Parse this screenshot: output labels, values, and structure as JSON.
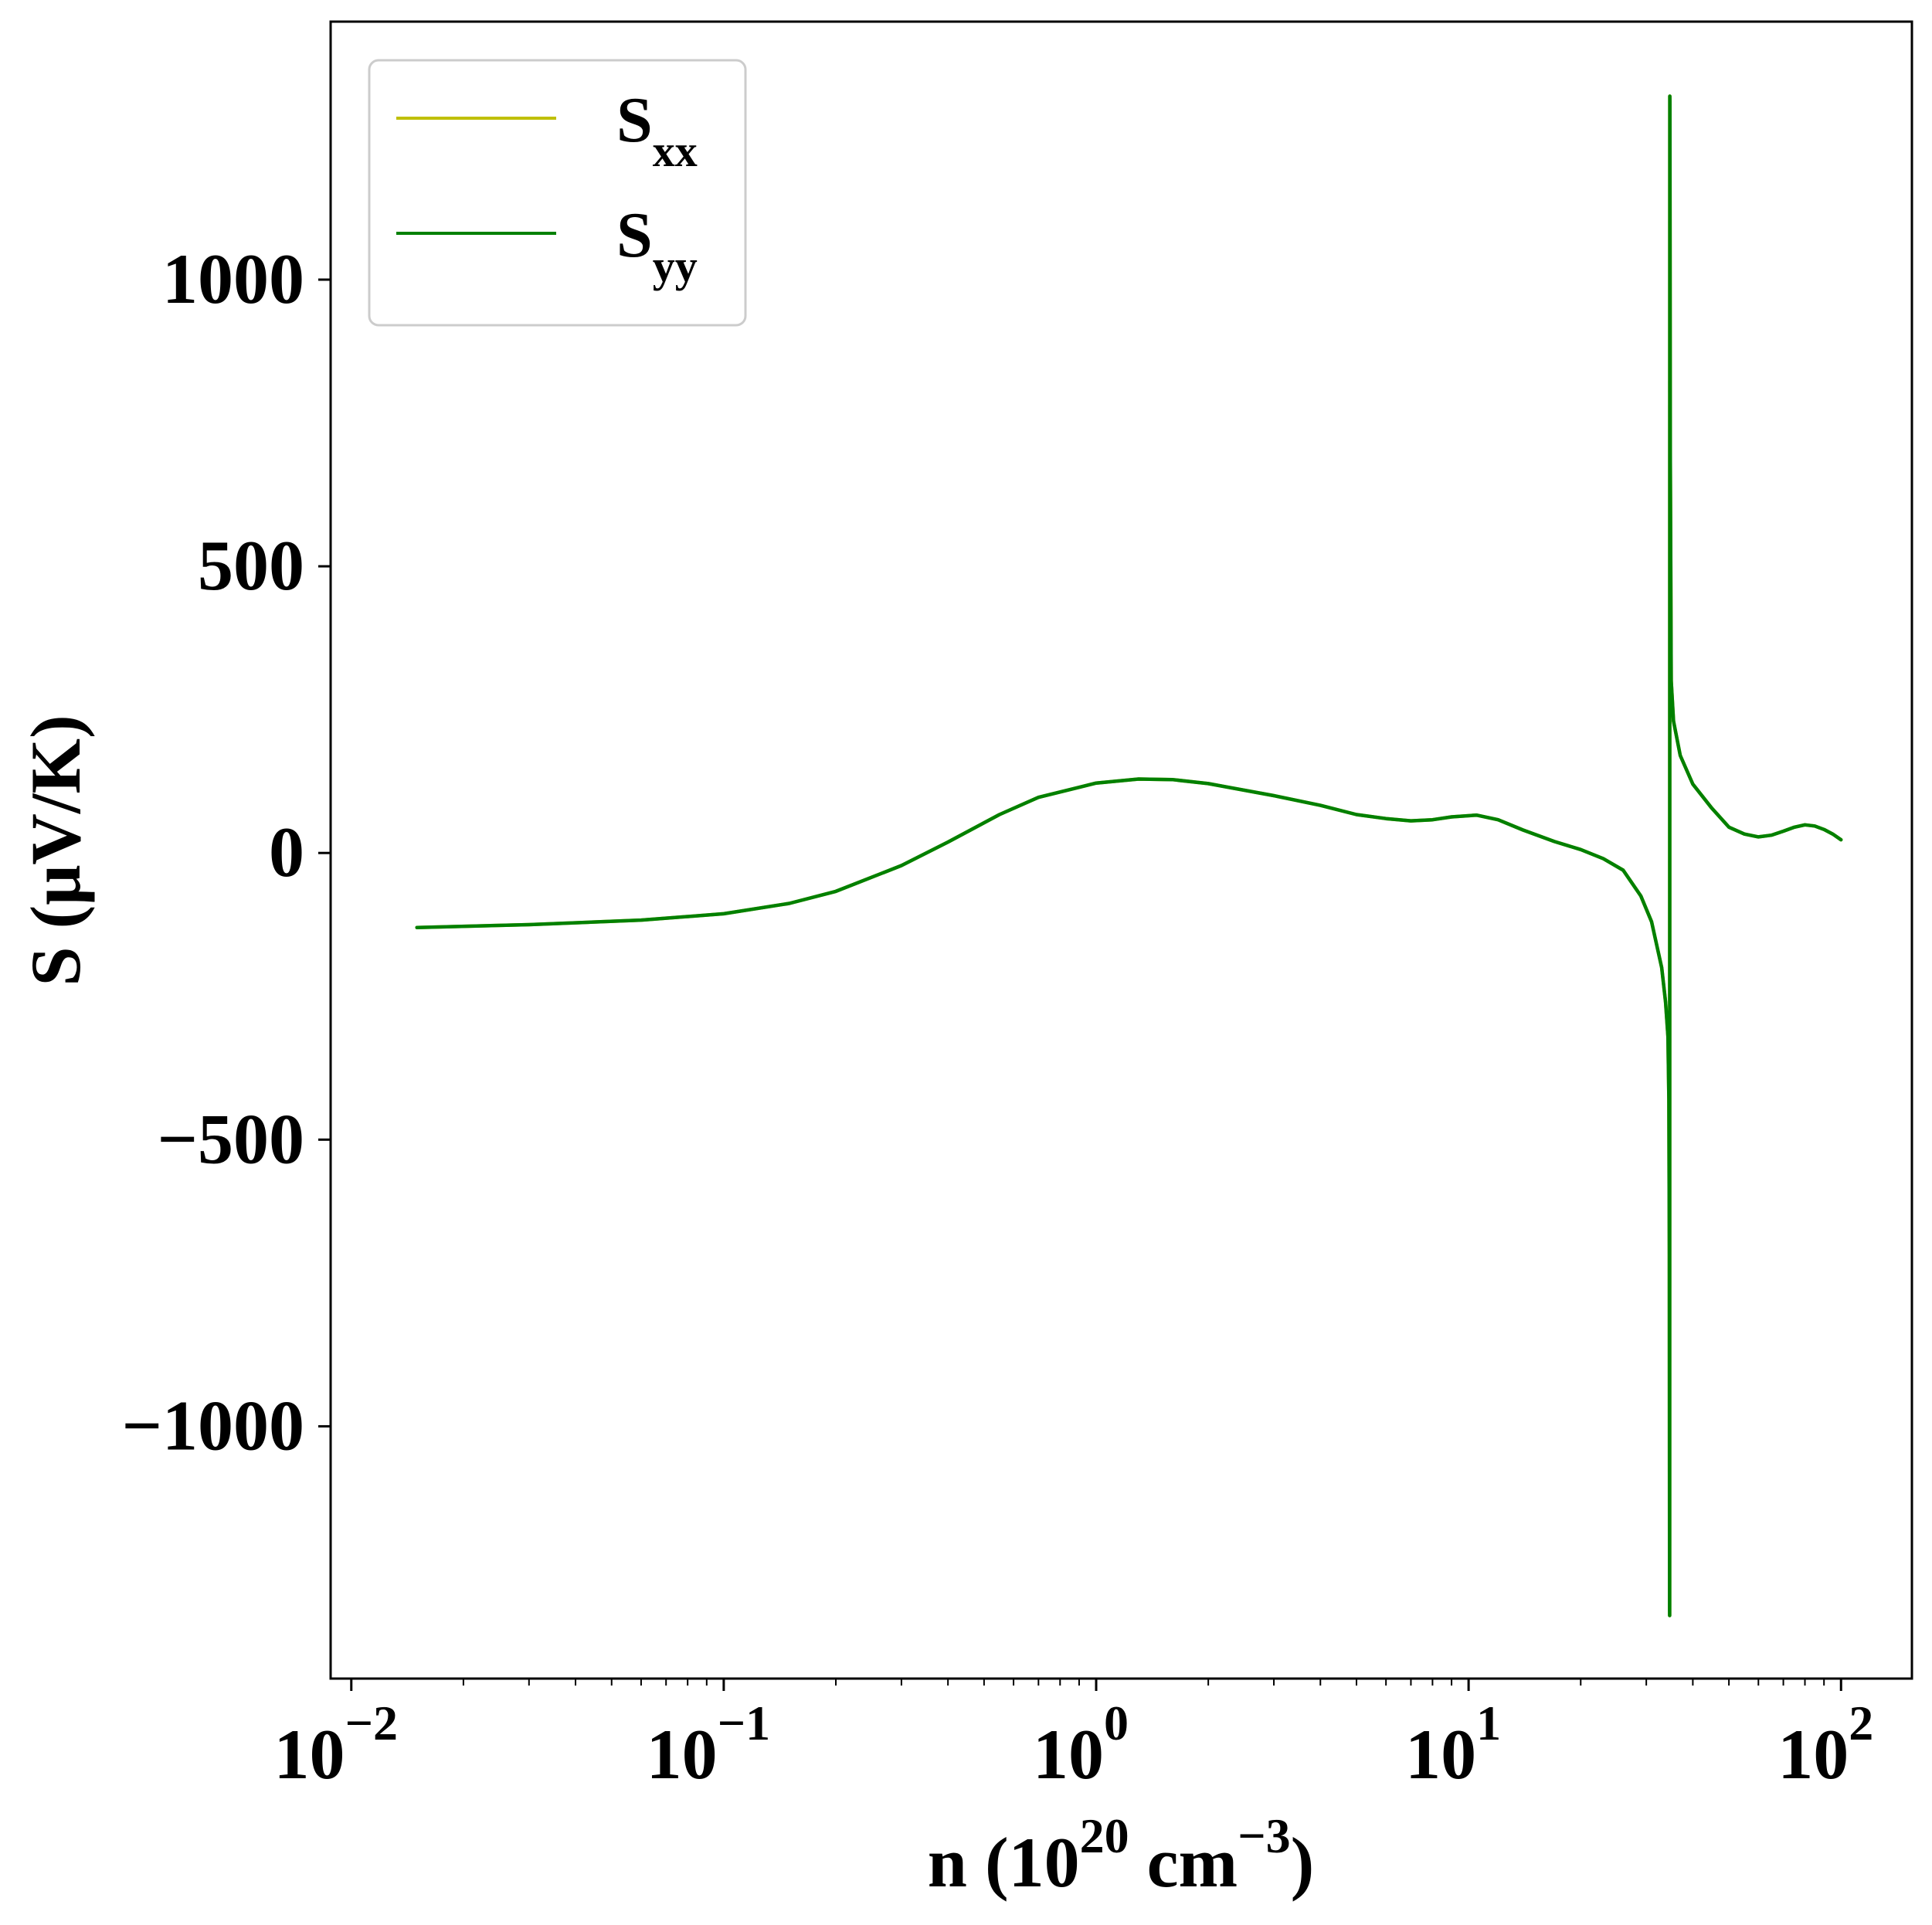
{
  "chart_data": {
    "type": "line",
    "title": "",
    "xlabel": {
      "prefix": "n (10",
      "sup1": "20",
      "middle": " cm",
      "sup2": "−3",
      "suffix": ")"
    },
    "ylabel": "S (μV/K)",
    "xscale": "log",
    "xlim": [
      0.0088,
      155
    ],
    "ylim": [
      -1440,
      1450
    ],
    "grid": false,
    "legend_position": "top-left",
    "x_ticks": [
      {
        "value": 0.01,
        "base": "10",
        "exp": "−2"
      },
      {
        "value": 0.1,
        "base": "10",
        "exp": "−1"
      },
      {
        "value": 1,
        "base": "10",
        "exp": "0"
      },
      {
        "value": 10,
        "base": "10",
        "exp": "1"
      },
      {
        "value": 100,
        "base": "10",
        "exp": "2"
      }
    ],
    "y_ticks": [
      {
        "value": 1000,
        "label": "1000"
      },
      {
        "value": 500,
        "label": "500"
      },
      {
        "value": 0,
        "label": "0"
      },
      {
        "value": -500,
        "label": "−500"
      },
      {
        "value": -1000,
        "label": "−1000"
      }
    ],
    "series": [
      {
        "name": "S",
        "subscript": "xx",
        "color": "#bfbf00",
        "points": [
          [
            0.015,
            -130
          ],
          [
            0.03,
            -125
          ],
          [
            0.06,
            -117
          ],
          [
            0.1,
            -106
          ],
          [
            0.15,
            -88
          ],
          [
            0.2,
            -67
          ],
          [
            0.3,
            -22
          ],
          [
            0.4,
            19
          ],
          [
            0.55,
            67
          ],
          [
            0.7,
            97
          ],
          [
            1.0,
            122
          ],
          [
            1.3,
            129
          ],
          [
            1.6,
            128
          ],
          [
            2.0,
            121
          ],
          [
            3.0,
            100
          ],
          [
            4.0,
            83
          ],
          [
            5.0,
            67
          ],
          [
            6.0,
            60
          ],
          [
            7.0,
            56
          ],
          [
            8.0,
            58
          ],
          [
            9.0,
            63
          ],
          [
            10.5,
            66
          ],
          [
            12.0,
            58
          ],
          [
            14.0,
            40
          ],
          [
            17.0,
            20
          ],
          [
            20.0,
            6
          ],
          [
            23.0,
            -10
          ],
          [
            26.0,
            -30
          ],
          [
            29.0,
            -75
          ],
          [
            31.0,
            -120
          ],
          [
            33.0,
            -200
          ],
          [
            33.8,
            -260
          ],
          [
            34.3,
            -320
          ],
          [
            34.5,
            -430
          ],
          [
            34.6,
            -700
          ],
          [
            34.65,
            -1320
          ],
          [
            34.67,
            -1330
          ],
          [
            34.69,
            1320
          ],
          [
            34.71,
            1310
          ],
          [
            34.8,
            700
          ],
          [
            35.0,
            300
          ],
          [
            35.5,
            230
          ],
          [
            37.0,
            170
          ],
          [
            40.0,
            120
          ],
          [
            45.0,
            78
          ],
          [
            50.0,
            45
          ],
          [
            55.0,
            33
          ],
          [
            60.0,
            28
          ],
          [
            65.0,
            31
          ],
          [
            70.0,
            38
          ],
          [
            75.0,
            45
          ],
          [
            80.0,
            49
          ],
          [
            85.0,
            47
          ],
          [
            90.0,
            41
          ],
          [
            95.0,
            33
          ],
          [
            100.0,
            23
          ]
        ]
      },
      {
        "name": "S",
        "subscript": "yy",
        "color": "#008000",
        "points": [
          [
            0.015,
            -130
          ],
          [
            0.03,
            -125
          ],
          [
            0.06,
            -117
          ],
          [
            0.1,
            -106
          ],
          [
            0.15,
            -88
          ],
          [
            0.2,
            -67
          ],
          [
            0.3,
            -22
          ],
          [
            0.4,
            19
          ],
          [
            0.55,
            67
          ],
          [
            0.7,
            97
          ],
          [
            1.0,
            122
          ],
          [
            1.3,
            129
          ],
          [
            1.6,
            128
          ],
          [
            2.0,
            121
          ],
          [
            3.0,
            100
          ],
          [
            4.0,
            83
          ],
          [
            5.0,
            67
          ],
          [
            6.0,
            60
          ],
          [
            7.0,
            56
          ],
          [
            8.0,
            58
          ],
          [
            9.0,
            63
          ],
          [
            10.5,
            66
          ],
          [
            12.0,
            58
          ],
          [
            14.0,
            40
          ],
          [
            17.0,
            20
          ],
          [
            20.0,
            6
          ],
          [
            23.0,
            -10
          ],
          [
            26.0,
            -30
          ],
          [
            29.0,
            -75
          ],
          [
            31.0,
            -120
          ],
          [
            33.0,
            -200
          ],
          [
            33.8,
            -260
          ],
          [
            34.3,
            -320
          ],
          [
            34.5,
            -430
          ],
          [
            34.6,
            -700
          ],
          [
            34.65,
            -1320
          ],
          [
            34.67,
            -1330
          ],
          [
            34.69,
            1320
          ],
          [
            34.71,
            1310
          ],
          [
            34.8,
            700
          ],
          [
            35.0,
            300
          ],
          [
            35.5,
            230
          ],
          [
            37.0,
            170
          ],
          [
            40.0,
            120
          ],
          [
            45.0,
            78
          ],
          [
            50.0,
            45
          ],
          [
            55.0,
            33
          ],
          [
            60.0,
            28
          ],
          [
            65.0,
            31
          ],
          [
            70.0,
            38
          ],
          [
            75.0,
            45
          ],
          [
            80.0,
            49
          ],
          [
            85.0,
            47
          ],
          [
            90.0,
            41
          ],
          [
            95.0,
            33
          ],
          [
            100.0,
            23
          ]
        ]
      }
    ]
  }
}
